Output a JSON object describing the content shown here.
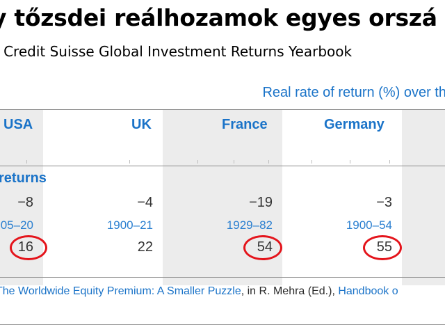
{
  "title": "y tőzsdei reálhozamok egyes orszá",
  "subtitle": ": Credit Suisse Global Investment Returns Yearbook",
  "table": {
    "header_caption": "Real rate of return (%) over th",
    "columns": [
      {
        "country": "USA",
        "worst_return": "−8",
        "period": "05–20",
        "years": "16"
      },
      {
        "country": "UK",
        "worst_return": "−4",
        "period": "1900–21",
        "years": "22"
      },
      {
        "country": "France",
        "worst_return": "−19",
        "period": "1929–82",
        "years": "54"
      },
      {
        "country": "Germany",
        "worst_return": "−3",
        "period": "1900–54",
        "years": "55"
      }
    ],
    "section_label": "returns",
    "circled_values": [
      "16",
      "54",
      "55"
    ],
    "circle_color": "#e4141b"
  },
  "source_note": {
    "link_text_1": "The Worldwide Equity Premium: A Smaller Puzzle",
    "middle_text": ", in R. Mehra (Ed.), ",
    "link_text_2": "Handbook o"
  },
  "colors": {
    "accent_blue": "#1a73c8",
    "shade_gray": "#ececec"
  }
}
